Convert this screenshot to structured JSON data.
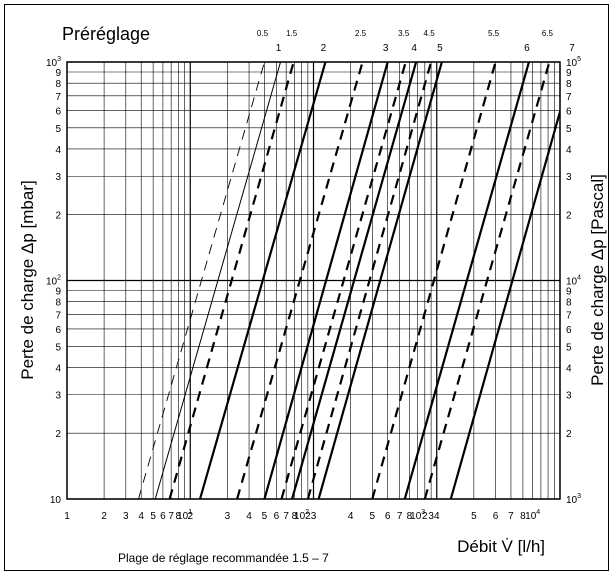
{
  "chart_data": {
    "type": "line",
    "title": "Préréglage",
    "xlabel": "Débit V̇ [l/h]",
    "ylabel_left": "Perte de charge Δp [mbar]",
    "ylabel_right": "Perte de charge Δp [Pascal]",
    "x_scale": "log",
    "y_scale": "log",
    "xlim": [
      1,
      10000
    ],
    "ylim_mbar": [
      10,
      1000
    ],
    "ylim_pascal": [
      1000,
      100000
    ],
    "grid": true,
    "x_ticks": [
      {
        "m": "1",
        "e": ""
      },
      {
        "m": "2",
        "e": ""
      },
      {
        "m": "3",
        "e": ""
      },
      {
        "m": "4",
        "e": ""
      },
      {
        "m": "5",
        "e": ""
      },
      {
        "m": "6",
        "e": ""
      },
      {
        "m": "7",
        "e": ""
      },
      {
        "m": "8",
        "e": ""
      },
      {
        "m": "10",
        "e": "1"
      },
      {
        "m": "2",
        "e": ""
      },
      {
        "m": "3",
        "e": ""
      },
      {
        "m": "4",
        "e": ""
      },
      {
        "m": "5",
        "e": ""
      },
      {
        "m": "6",
        "e": ""
      },
      {
        "m": "7",
        "e": ""
      },
      {
        "m": "8",
        "e": ""
      },
      {
        "m": "10",
        "e": "2"
      },
      {
        "m": "2",
        "e": ""
      },
      {
        "m": "3",
        "e": ""
      },
      {
        "m": "4",
        "e": ""
      },
      {
        "m": "5",
        "e": ""
      },
      {
        "m": "6",
        "e": ""
      },
      {
        "m": "7",
        "e": ""
      },
      {
        "m": "8",
        "e": ""
      },
      {
        "m": "10",
        "e": "3"
      },
      {
        "m": "2",
        "e": ""
      },
      {
        "m": "3",
        "e": ""
      },
      {
        "m": "4",
        "e": ""
      },
      {
        "m": "5",
        "e": ""
      },
      {
        "m": "6",
        "e": ""
      },
      {
        "m": "7",
        "e": ""
      },
      {
        "m": "8",
        "e": ""
      },
      {
        "m": "10",
        "e": "4"
      }
    ],
    "y_ticks_left": [
      {
        "m": "10",
        "e": ""
      },
      {
        "m": "2",
        "e": ""
      },
      {
        "m": "3",
        "e": ""
      },
      {
        "m": "4",
        "e": ""
      },
      {
        "m": "5",
        "e": ""
      },
      {
        "m": "6",
        "e": ""
      },
      {
        "m": "7",
        "e": ""
      },
      {
        "m": "8",
        "e": ""
      },
      {
        "m": "9",
        "e": ""
      },
      {
        "m": "10",
        "e": "2"
      },
      {
        "m": "2",
        "e": ""
      },
      {
        "m": "3",
        "e": ""
      },
      {
        "m": "4",
        "e": ""
      },
      {
        "m": "5",
        "e": ""
      },
      {
        "m": "6",
        "e": ""
      },
      {
        "m": "7",
        "e": ""
      },
      {
        "m": "8",
        "e": ""
      },
      {
        "m": "9",
        "e": ""
      },
      {
        "m": "10",
        "e": "3"
      }
    ],
    "y_ticks_right": [
      {
        "m": "10",
        "e": "3"
      },
      {
        "m": "2",
        "e": ""
      },
      {
        "m": "3",
        "e": ""
      },
      {
        "m": "4",
        "e": ""
      },
      {
        "m": "5",
        "e": ""
      },
      {
        "m": "6",
        "e": ""
      },
      {
        "m": "7",
        "e": ""
      },
      {
        "m": "8",
        "e": ""
      },
      {
        "m": "9",
        "e": ""
      },
      {
        "m": "10",
        "e": "4"
      },
      {
        "m": "2",
        "e": ""
      },
      {
        "m": "3",
        "e": ""
      },
      {
        "m": "4",
        "e": ""
      },
      {
        "m": "5",
        "e": ""
      },
      {
        "m": "6",
        "e": ""
      },
      {
        "m": "7",
        "e": ""
      },
      {
        "m": "8",
        "e": ""
      },
      {
        "m": "9",
        "e": ""
      },
      {
        "m": "10",
        "e": "5"
      }
    ],
    "series": [
      {
        "name": "0.5",
        "style": "dashed-thin",
        "points": [
          [
            3.8,
            10
          ],
          [
            40,
            1000
          ]
        ]
      },
      {
        "name": "1",
        "style": "solid-thin",
        "points": [
          [
            5.2,
            10
          ],
          [
            54,
            1000
          ]
        ]
      },
      {
        "name": "1.5",
        "style": "dashed",
        "points": [
          [
            6.8,
            10
          ],
          [
            69,
            1000
          ]
        ]
      },
      {
        "name": "2",
        "style": "solid",
        "points": [
          [
            12,
            10
          ],
          [
            125,
            1000
          ]
        ]
      },
      {
        "name": "2.5",
        "style": "dashed",
        "points": [
          [
            24,
            10
          ],
          [
            250,
            1000
          ]
        ]
      },
      {
        "name": "3",
        "style": "solid",
        "points": [
          [
            40,
            10
          ],
          [
            400,
            1000
          ]
        ]
      },
      {
        "name": "3.5",
        "style": "dashed",
        "points": [
          [
            55,
            10
          ],
          [
            560,
            1000
          ]
        ]
      },
      {
        "name": "4",
        "style": "solid",
        "points": [
          [
            67,
            10
          ],
          [
            680,
            1000
          ]
        ]
      },
      {
        "name": "4.5",
        "style": "dashed",
        "points": [
          [
            90,
            10
          ],
          [
            900,
            1000
          ]
        ]
      },
      {
        "name": "5",
        "style": "solid",
        "points": [
          [
            110,
            10
          ],
          [
            1100,
            1000
          ]
        ]
      },
      {
        "name": "5.5",
        "style": "dashed",
        "points": [
          [
            300,
            10
          ],
          [
            3000,
            1000
          ]
        ]
      },
      {
        "name": "6",
        "style": "solid",
        "points": [
          [
            550,
            10
          ],
          [
            5600,
            1000
          ]
        ]
      },
      {
        "name": "6.5",
        "style": "dashed",
        "points": [
          [
            800,
            10
          ],
          [
            8200,
            1000
          ]
        ]
      },
      {
        "name": "7",
        "style": "solid",
        "points": [
          [
            1300,
            10
          ],
          [
            13000,
            1000
          ]
        ]
      }
    ],
    "annotation": "Plage de réglage recommandée 1.5 – 7"
  }
}
